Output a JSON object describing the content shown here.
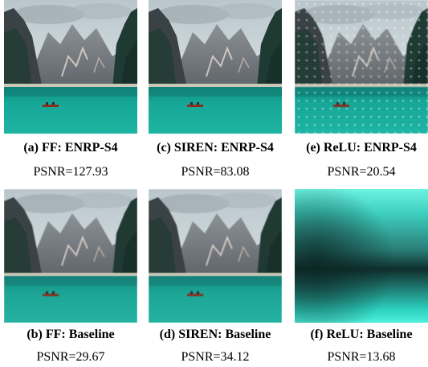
{
  "panels": [
    {
      "id": "a",
      "caption": "(a) FF: ENRP-S4",
      "psnr": "PSNR=127.93"
    },
    {
      "id": "c",
      "caption": "(c) SIREN: ENRP-S4",
      "psnr": "PSNR=83.08"
    },
    {
      "id": "e",
      "caption": "(e) ReLU: ENRP-S4",
      "psnr": "PSNR=20.54"
    },
    {
      "id": "b",
      "caption": "(b) FF: Baseline",
      "psnr": "PSNR=29.67"
    },
    {
      "id": "d",
      "caption": "(d) SIREN: Baseline",
      "psnr": "PSNR=34.12"
    },
    {
      "id": "f",
      "caption": "(f) ReLU: Baseline",
      "psnr": "PSNR=13.68"
    }
  ],
  "colors": {
    "sky": "#c9d3d8",
    "mountain": "#6f7478",
    "forest": "#1f3a33",
    "lake": "#17a99a",
    "lake_light": "#3fd1c0",
    "blurred_dark": "#123b38",
    "blurred_light": "#5ff0de"
  }
}
